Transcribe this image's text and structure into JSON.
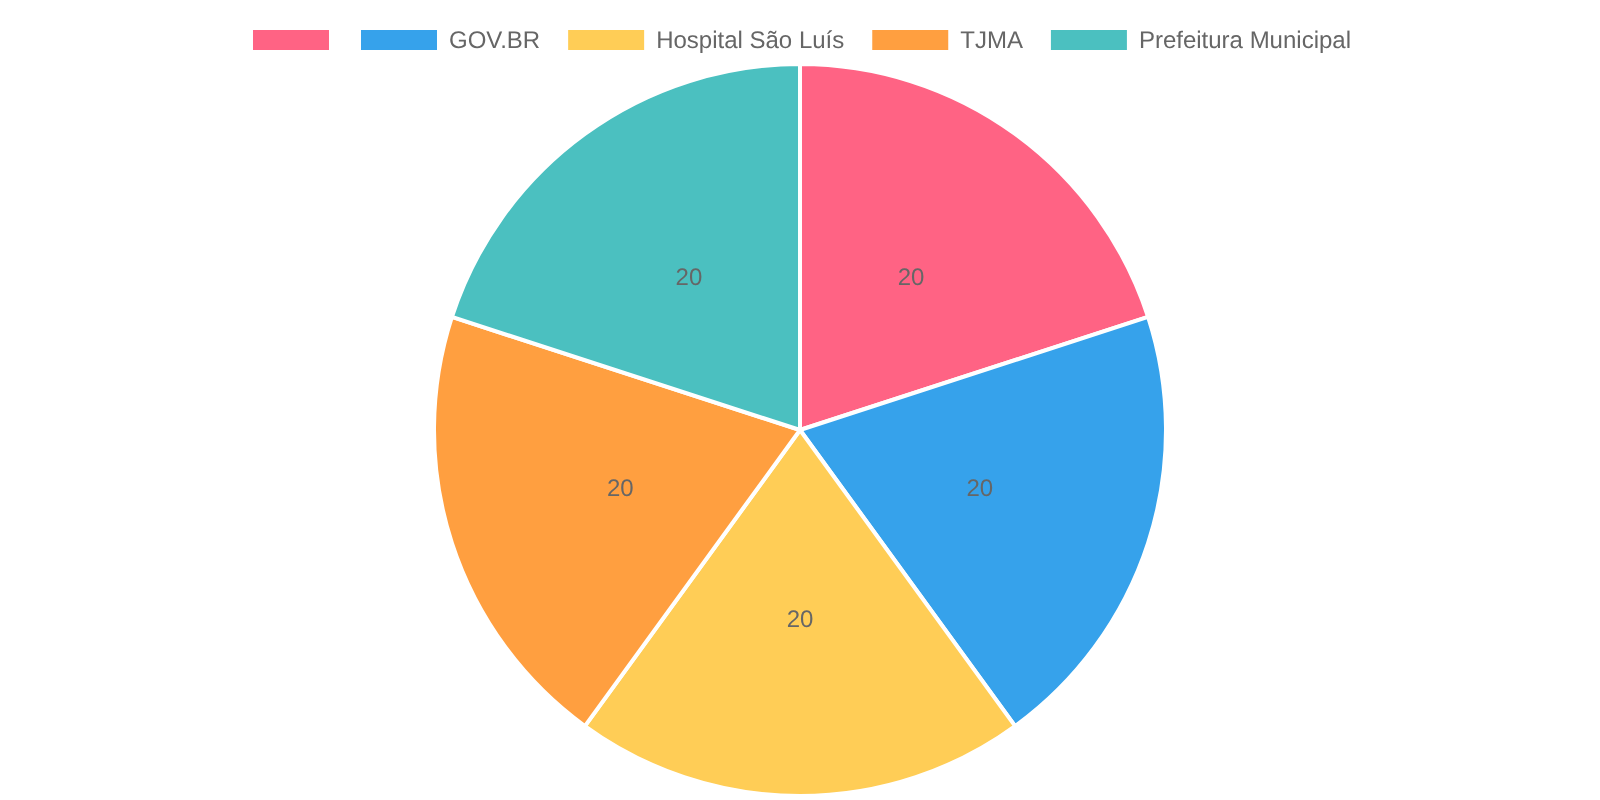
{
  "chart_data": {
    "type": "pie",
    "categories": [
      null,
      "GOV.BR",
      "Hospital São Luís",
      "TJMA",
      "Prefeitura Municipal"
    ],
    "values": [
      20,
      20,
      20,
      20,
      20
    ],
    "colors": [
      "#ff6384",
      "#36a2eb",
      "#ffcd56",
      "#ff9f40",
      "#4bc0c0"
    ],
    "data_labels": true,
    "legend": "top"
  }
}
